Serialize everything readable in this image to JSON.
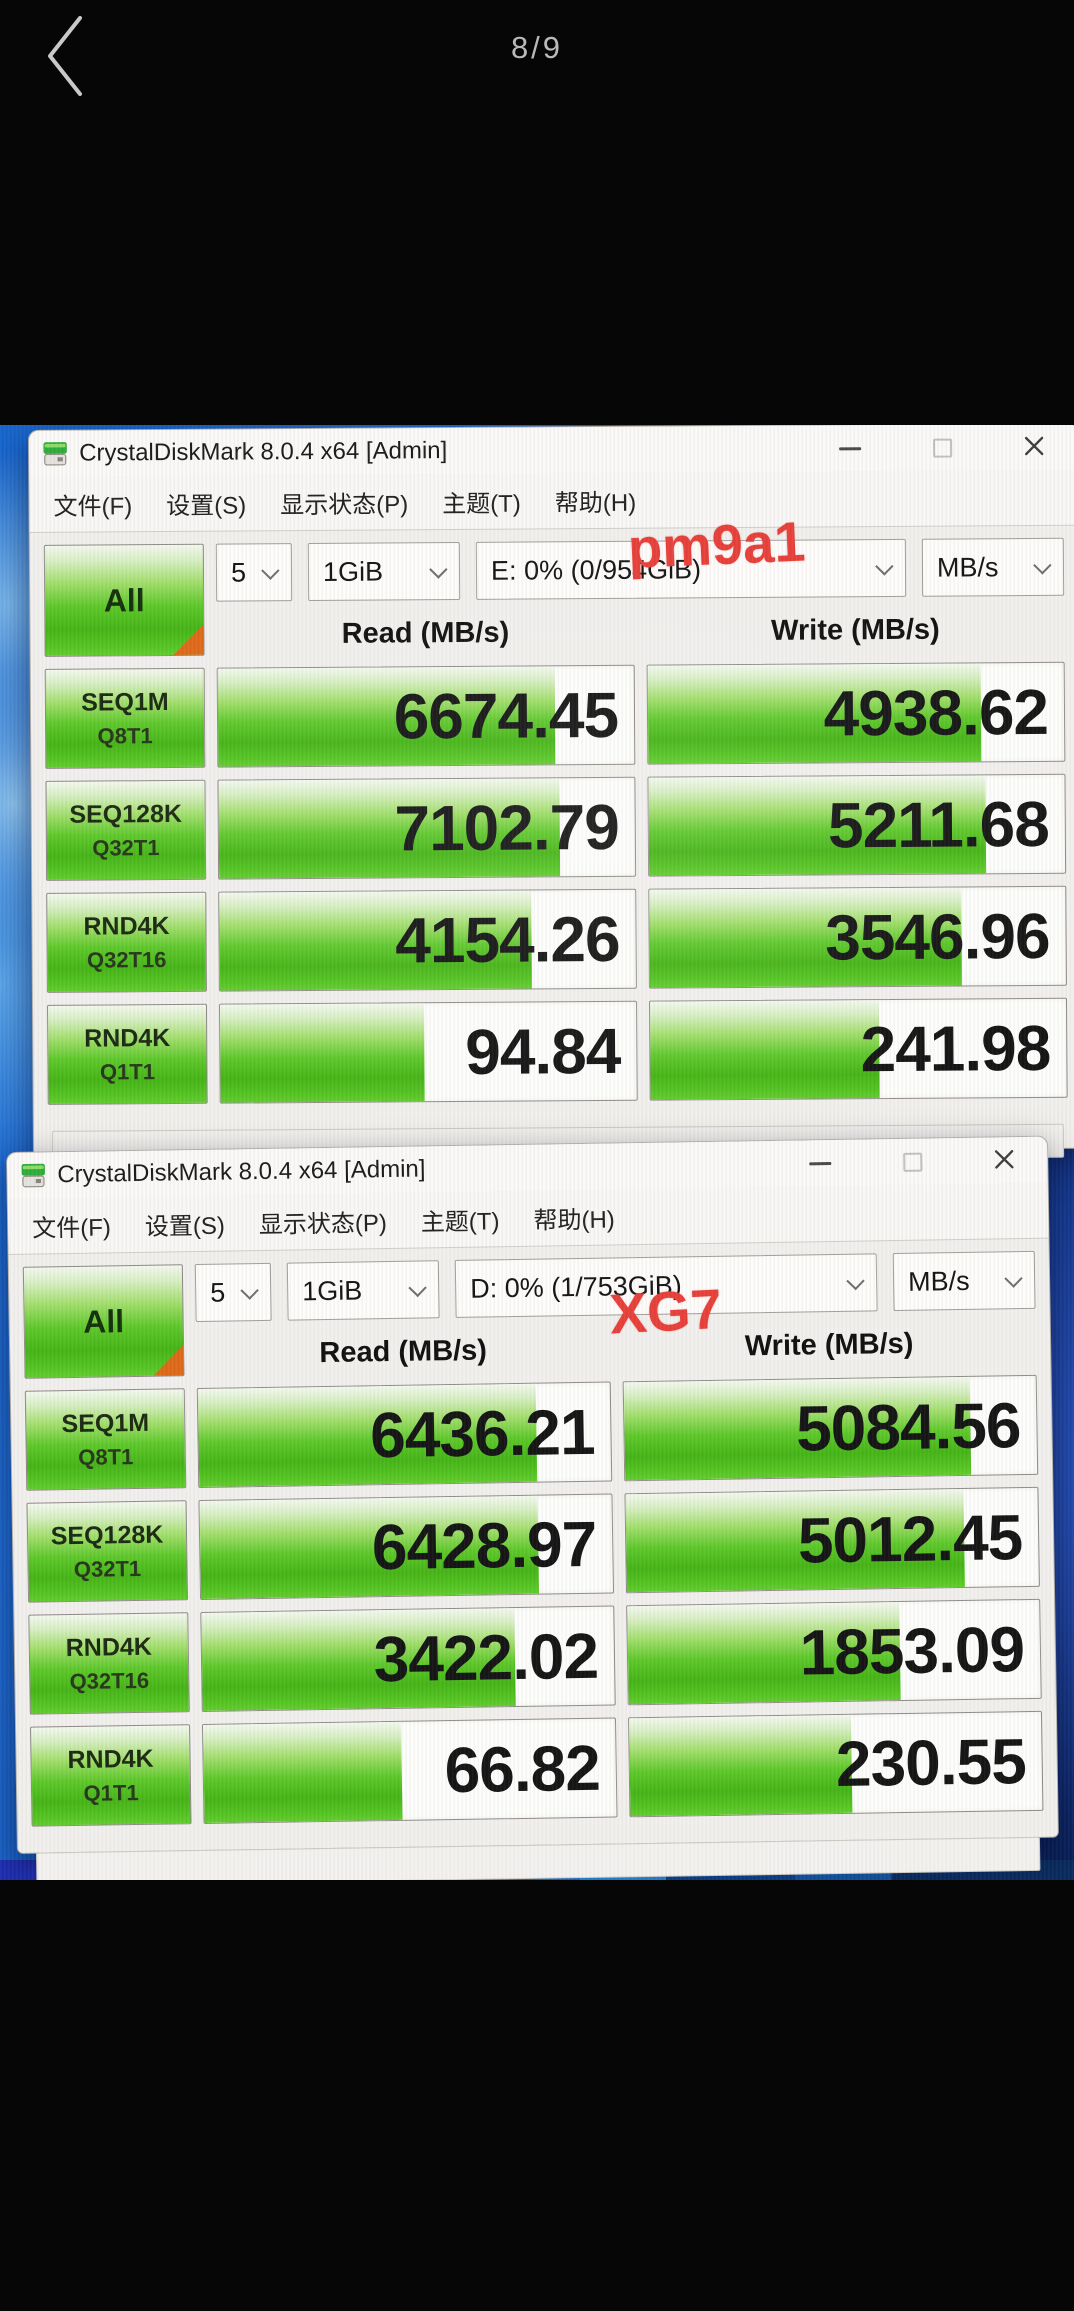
{
  "viewer": {
    "counter": "8/9"
  },
  "colors": {
    "annotation_red": "#e8403a",
    "result_green": "#55c522",
    "all_button_corner_orange": "#e06a1a",
    "wallpaper_blue": "#1d6bd6",
    "viewer_text_gray": "#b9b9b9"
  },
  "windows": [
    {
      "title": "CrystalDiskMark 8.0.4 x64 [Admin]",
      "menu": {
        "file": "文件(F)",
        "settings": "设置(S)",
        "view": "显示状态(P)",
        "theme": "主题(T)",
        "help": "帮助(H)"
      },
      "all_button": "All",
      "toolbar": {
        "test_count": "5",
        "test_size": "1GiB",
        "drive": "E: 0% (0/954GiB)",
        "unit": "MB/s"
      },
      "columns": {
        "read": "Read (MB/s)",
        "write": "Write (MB/s)"
      },
      "annotation": "pm9a1",
      "rows": [
        {
          "test": "SEQ1M",
          "queue": "Q8T1",
          "read": "6674.45",
          "write": "4938.62",
          "read_pct": 81,
          "write_pct": 80
        },
        {
          "test": "SEQ128K",
          "queue": "Q32T1",
          "read": "7102.79",
          "write": "5211.68",
          "read_pct": 82,
          "write_pct": 81
        },
        {
          "test": "RND4K",
          "queue": "Q32T16",
          "read": "4154.26",
          "write": "3546.96",
          "read_pct": 75,
          "write_pct": 75
        },
        {
          "test": "RND4K",
          "queue": "Q1T1",
          "read": "94.84",
          "write": "241.98",
          "read_pct": 49,
          "write_pct": 55
        }
      ]
    },
    {
      "title": "CrystalDiskMark 8.0.4 x64 [Admin]",
      "menu": {
        "file": "文件(F)",
        "settings": "设置(S)",
        "view": "显示状态(P)",
        "theme": "主题(T)",
        "help": "帮助(H)"
      },
      "all_button": "All",
      "toolbar": {
        "test_count": "5",
        "test_size": "1GiB",
        "drive": "D: 0% (1/753GiB)",
        "unit": "MB/s"
      },
      "columns": {
        "read": "Read (MB/s)",
        "write": "Write (MB/s)"
      },
      "annotation": "XG7",
      "rows": [
        {
          "test": "SEQ1M",
          "queue": "Q8T1",
          "read": "6436.21",
          "write": "5084.56",
          "read_pct": 82,
          "write_pct": 84
        },
        {
          "test": "SEQ128K",
          "queue": "Q32T1",
          "read": "6428.97",
          "write": "5012.45",
          "read_pct": 82,
          "write_pct": 82
        },
        {
          "test": "RND4K",
          "queue": "Q32T16",
          "read": "3422.02",
          "write": "1853.09",
          "read_pct": 76,
          "write_pct": 66
        },
        {
          "test": "RND4K",
          "queue": "Q1T1",
          "read": "66.82",
          "write": "230.55",
          "read_pct": 48,
          "write_pct": 54
        }
      ]
    }
  ]
}
